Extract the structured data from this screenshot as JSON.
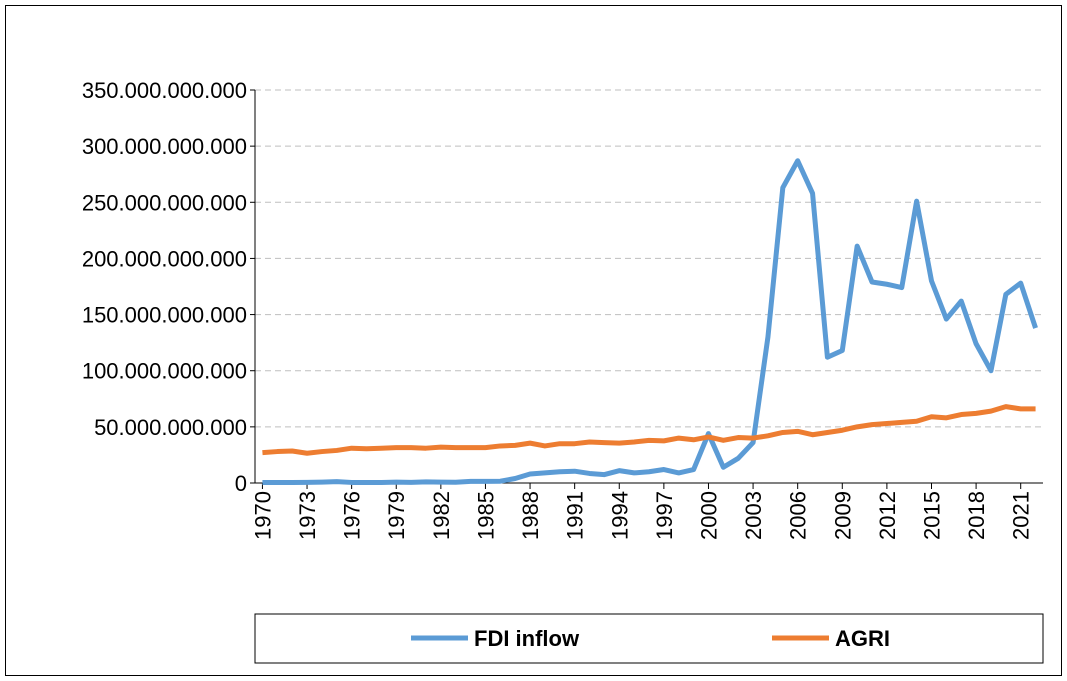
{
  "chart_data": {
    "type": "line",
    "x": [
      1970,
      1971,
      1972,
      1973,
      1974,
      1975,
      1976,
      1977,
      1978,
      1979,
      1980,
      1981,
      1982,
      1983,
      1984,
      1985,
      1986,
      1987,
      1988,
      1989,
      1990,
      1991,
      1992,
      1993,
      1994,
      1995,
      1996,
      1997,
      1998,
      1999,
      2000,
      2001,
      2002,
      2003,
      2004,
      2005,
      2006,
      2007,
      2008,
      2009,
      2010,
      2011,
      2012,
      2013,
      2014,
      2015,
      2016,
      2017,
      2018,
      2019,
      2020,
      2021,
      2022
    ],
    "xlim": [
      1969.5,
      2022.5
    ],
    "xticks": [
      1970,
      1973,
      1976,
      1979,
      1982,
      1985,
      1988,
      1991,
      1994,
      1997,
      2000,
      2003,
      2006,
      2009,
      2012,
      2015,
      2018,
      2021
    ],
    "ylim": [
      0,
      350000000000
    ],
    "yticks": [
      {
        "value": 0,
        "label": "0"
      },
      {
        "value": 50000000000,
        "label": "50.000.000.000"
      },
      {
        "value": 100000000000,
        "label": "100.000.000.000"
      },
      {
        "value": 150000000000,
        "label": "150.000.000.000"
      },
      {
        "value": 200000000000,
        "label": "200.000.000.000"
      },
      {
        "value": 250000000000,
        "label": "250.000.000.000"
      },
      {
        "value": 300000000000,
        "label": "300.000.000.000"
      },
      {
        "value": 350000000000,
        "label": "350.000.000.000"
      }
    ],
    "grid": true,
    "legend": "bottom",
    "series": [
      {
        "name": "FDI inflow",
        "color": "#5b9bd5",
        "values": [
          500000000,
          400000000,
          400000000,
          600000000,
          800000000,
          1200000000,
          500000000,
          400000000,
          500000000,
          800000000,
          600000000,
          1000000000,
          800000000,
          700000000,
          1500000000,
          1400000000,
          1600000000,
          4000000000,
          8000000000,
          9000000000,
          10000000000,
          10500000000,
          8500000000,
          7500000000,
          11000000000,
          9000000000,
          10000000000,
          12000000000,
          9000000000,
          12000000000,
          44000000000,
          14000000000,
          22000000000,
          36000000000,
          130000000000,
          263000000000,
          287000000000,
          258000000000,
          112000000000,
          118000000000,
          211000000000,
          179000000000,
          177000000000,
          174000000000,
          251000000000,
          180000000000,
          146000000000,
          162000000000,
          124000000000,
          100000000000,
          168000000000,
          178000000000,
          138000000000
        ]
      },
      {
        "name": "AGRI",
        "color": "#ed7d31",
        "values": [
          27000000000,
          28000000000,
          28500000000,
          26500000000,
          28000000000,
          29000000000,
          31000000000,
          30500000000,
          31000000000,
          31500000000,
          31500000000,
          31000000000,
          32000000000,
          31500000000,
          31500000000,
          31500000000,
          33000000000,
          33500000000,
          35500000000,
          33000000000,
          35000000000,
          35000000000,
          36500000000,
          36000000000,
          35500000000,
          36500000000,
          38000000000,
          37500000000,
          40000000000,
          38500000000,
          41000000000,
          38000000000,
          40500000000,
          40000000000,
          42000000000,
          45000000000,
          46000000000,
          43000000000,
          45000000000,
          47000000000,
          50000000000,
          52000000000,
          53000000000,
          54000000000,
          55000000000,
          59000000000,
          58000000000,
          61000000000,
          62000000000,
          64000000000,
          68000000000,
          66000000000,
          66000000000
        ]
      }
    ]
  }
}
